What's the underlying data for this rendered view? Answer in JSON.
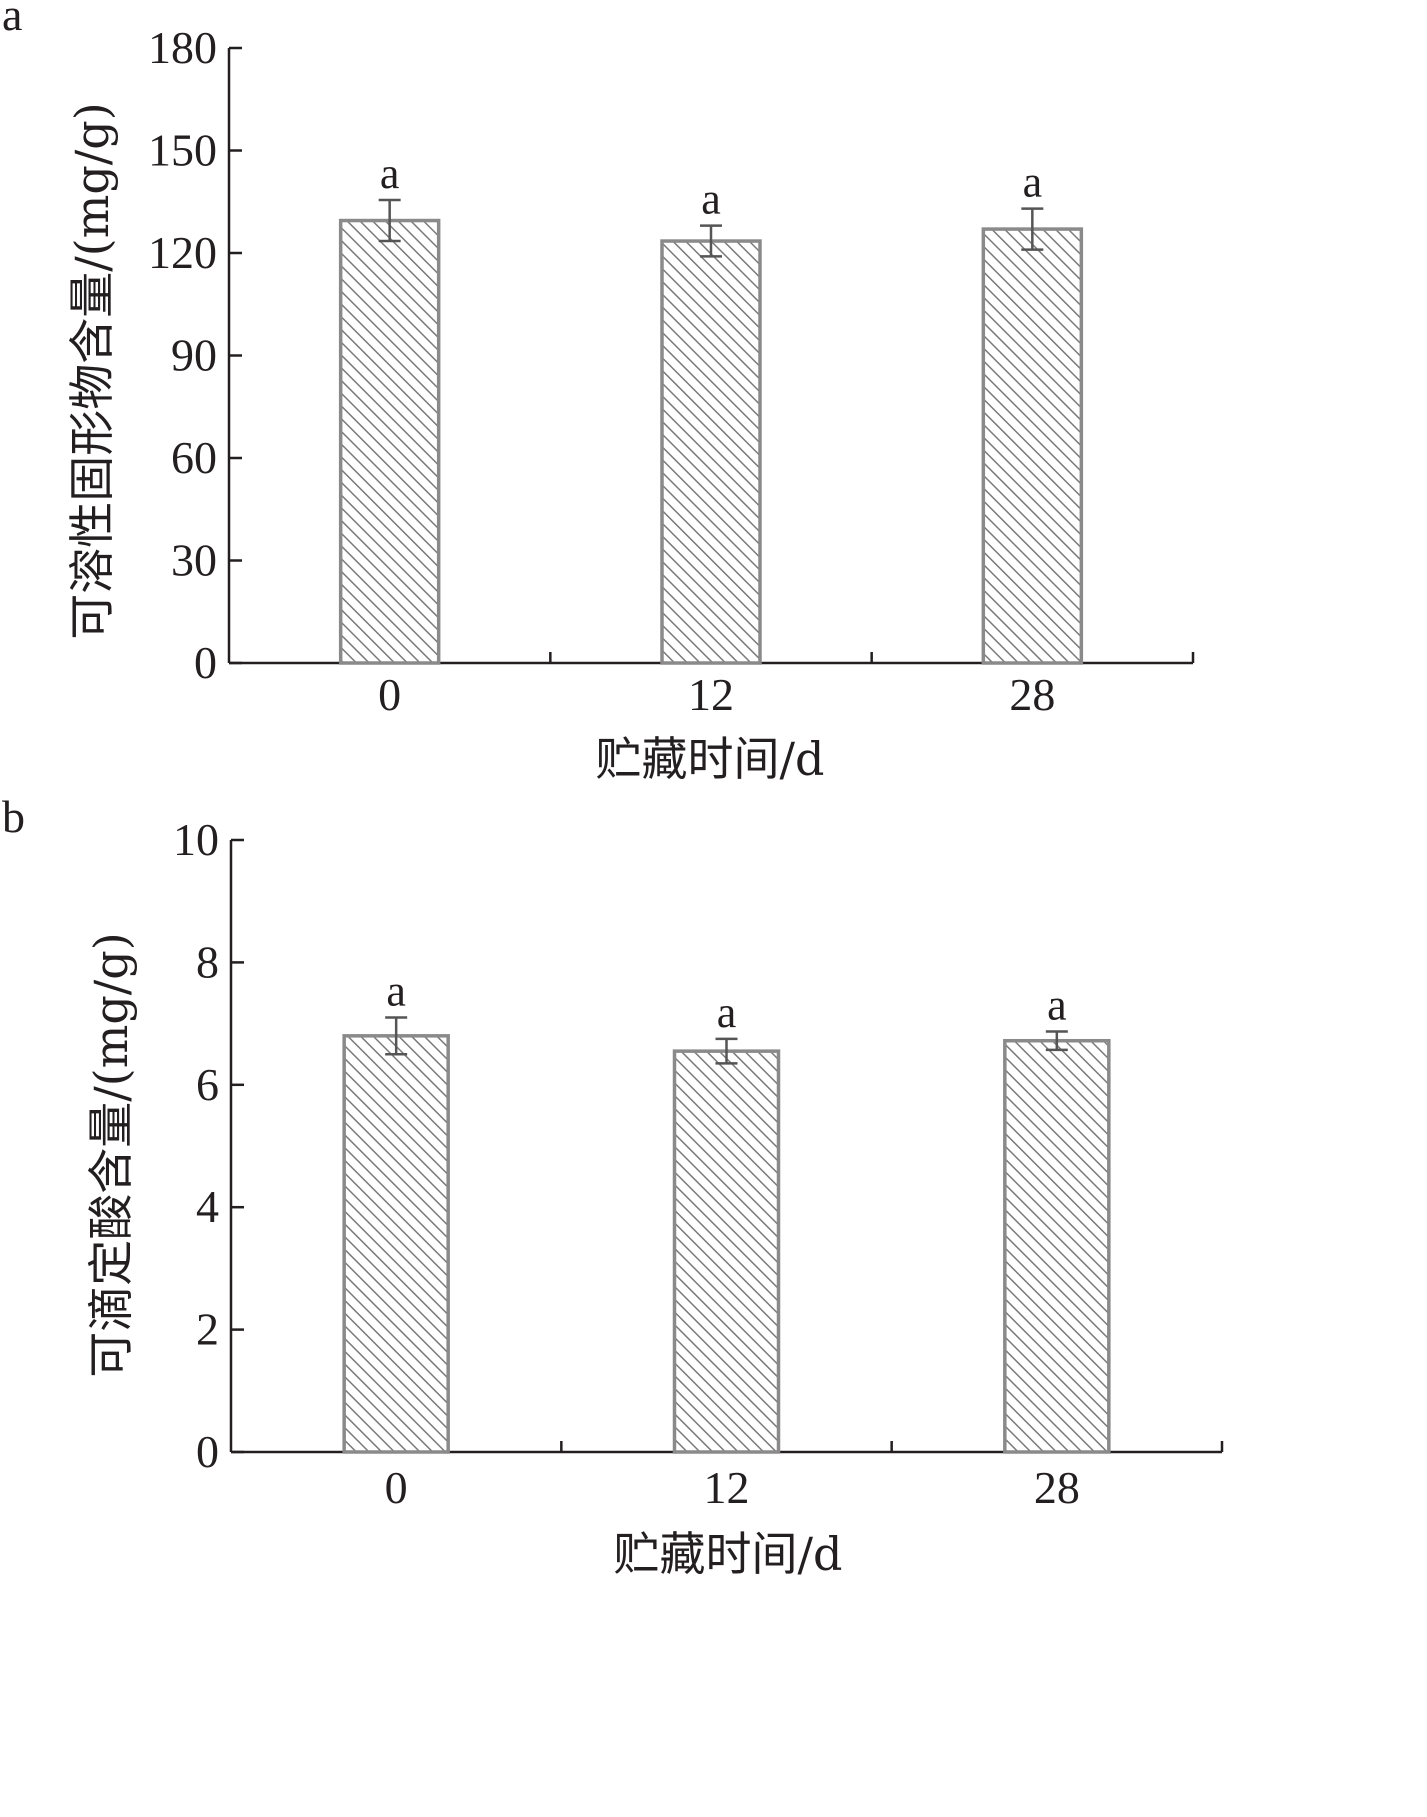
{
  "chart_data": [
    {
      "type": "bar",
      "panel_label": "a",
      "categories": [
        "0",
        "12",
        "28"
      ],
      "values": [
        129.5,
        123.5,
        127
      ],
      "errors": [
        6,
        4.5,
        6
      ],
      "significance": [
        "a",
        "a",
        "a"
      ],
      "xlabel": "贮藏时间/d",
      "ylabel": "可溶性固形物含量/(mg/g)",
      "ylim": [
        0,
        180
      ],
      "yticks": [
        "0",
        "30",
        "60",
        "90",
        "120",
        "150",
        "180"
      ],
      "grid": false,
      "bar_fill": "hatched",
      "bar_stroke": "#8a8a8a"
    },
    {
      "type": "bar",
      "panel_label": "b",
      "categories": [
        "0",
        "12",
        "28"
      ],
      "values": [
        6.8,
        6.55,
        6.72
      ],
      "errors": [
        0.3,
        0.2,
        0.15
      ],
      "significance": [
        "a",
        "a",
        "a"
      ],
      "xlabel": "贮藏时间/d",
      "ylabel": "可滴定酸含量/(mg/g)",
      "ylim": [
        0,
        10
      ],
      "yticks": [
        "0",
        "2",
        "4",
        "6",
        "8",
        "10"
      ],
      "grid": false,
      "bar_fill": "hatched",
      "bar_stroke": "#8a8a8a"
    }
  ]
}
